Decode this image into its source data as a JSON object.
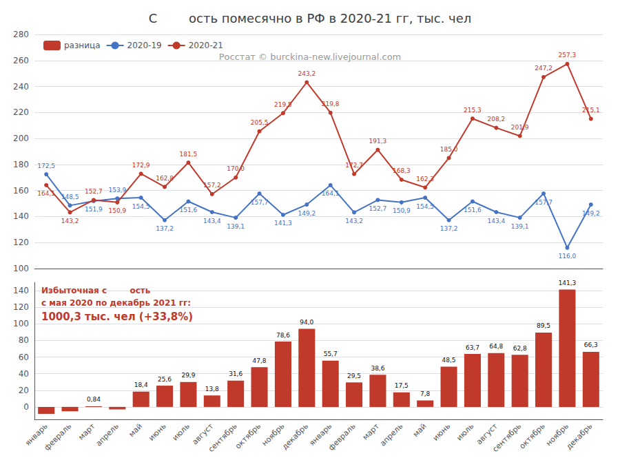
{
  "chart_data": [
    {
      "type": "line",
      "title": "С        ость помесячно в РФ в 2020-21 гг, тыс. чел",
      "categories": [
        "январь",
        "февраль",
        "март",
        "апрель",
        "май",
        "июнь",
        "июль",
        "август",
        "сентябрь",
        "октябрь",
        "ноябрь",
        "декабрь",
        "январь",
        "февраль",
        "март",
        "апрель",
        "май",
        "июнь",
        "июль",
        "август",
        "сентябрь",
        "октябрь",
        "ноябрь",
        "декабрь"
      ],
      "series": [
        {
          "name": "2020-19",
          "color": "#4472c4",
          "values": [
            172.5,
            148.5,
            151.9,
            153.9,
            154.5,
            137.2,
            151.6,
            143.4,
            139.1,
            157.7,
            141.3,
            149.2,
            164.1,
            143.2,
            152.7,
            150.9,
            154.5,
            137.2,
            151.6,
            143.4,
            139.1,
            157.7,
            116.0,
            149.2
          ],
          "value_labels": [
            "172,5",
            "148,5",
            "151,9",
            "153,9",
            "154,5",
            "137,2",
            "151,6",
            "143,4",
            "139,1",
            "157,7",
            "141,3",
            "149,2",
            "164,1",
            "143,2",
            "152,7",
            "150,9",
            "154,5",
            "137,2",
            "151,6",
            "143,4",
            "139,1",
            "157,7",
            "116,0",
            "149,2"
          ]
        },
        {
          "name": "2020-21",
          "color": "#c0392b",
          "values": [
            164.1,
            143.2,
            152.7,
            150.9,
            172.9,
            162.8,
            181.5,
            157.2,
            170.0,
            205.5,
            219.5,
            243.2,
            219.8,
            172.7,
            191.3,
            168.3,
            162.3,
            185.0,
            215.3,
            208.2,
            201.9,
            247.2,
            257.3,
            215.1
          ],
          "value_labels": [
            "164,1",
            "143,2",
            "152,7",
            "150,9",
            "172,9",
            "162,8",
            "181,5",
            "157,2",
            "170,0",
            "205,5",
            "219,5",
            "243,2",
            "219,8",
            "172,7",
            "191,3",
            "168,3",
            "162,3",
            "185,0",
            "215,3",
            "208,2",
            "201,9",
            "247,2",
            "257,3",
            "215,1"
          ]
        }
      ],
      "ylim": [
        100,
        280
      ],
      "yticks": [
        100,
        120,
        140,
        160,
        180,
        200,
        220,
        240,
        260,
        280
      ],
      "grid": true,
      "legend": "upper left",
      "data_labels": true,
      "marker": "circle",
      "tick_labels": "y",
      "annotations": [
        "Росстат © burckina-new.livejournal.com"
      ]
    },
    {
      "type": "bar",
      "categories": [
        "январь",
        "февраль",
        "март",
        "апрель",
        "май",
        "июнь",
        "июль",
        "август",
        "сентябрь",
        "октябрь",
        "ноябрь",
        "декабрь",
        "январь",
        "февраль",
        "март",
        "апрель",
        "май",
        "июнь",
        "июль",
        "август",
        "сентябрь",
        "октябрь",
        "ноябрь",
        "декабрь"
      ],
      "series": [
        {
          "name": "разница",
          "color": "#c0392b",
          "values": [
            -8.4,
            -5.3,
            0.84,
            -3.0,
            18.4,
            25.6,
            29.9,
            13.8,
            31.6,
            47.8,
            78.6,
            94.0,
            55.7,
            29.5,
            38.6,
            17.5,
            7.8,
            48.5,
            63.7,
            64.8,
            62.8,
            89.5,
            141.3,
            66.3
          ],
          "value_labels": [
            null,
            null,
            "0,84",
            null,
            "18,4",
            "25,6",
            "29,9",
            "13,8",
            "31,6",
            "47,8",
            "78,6",
            "94,0",
            "55,7",
            "29,5",
            "38,6",
            "17,5",
            "7,8",
            "48,5",
            "63,7",
            "64,8",
            "62,8",
            "89,5",
            "141,3",
            "66,3"
          ]
        }
      ],
      "ylim": [
        -15,
        150
      ],
      "yticks": [
        0,
        20,
        40,
        60,
        80,
        100,
        120,
        140
      ],
      "grid": true,
      "data_labels": true,
      "annotations": [
        "Избыточная с        ость",
        "с мая 2020 по декабрь 2021 гг:",
        "1000,3 тыс. чел (+33,8%)"
      ]
    }
  ]
}
